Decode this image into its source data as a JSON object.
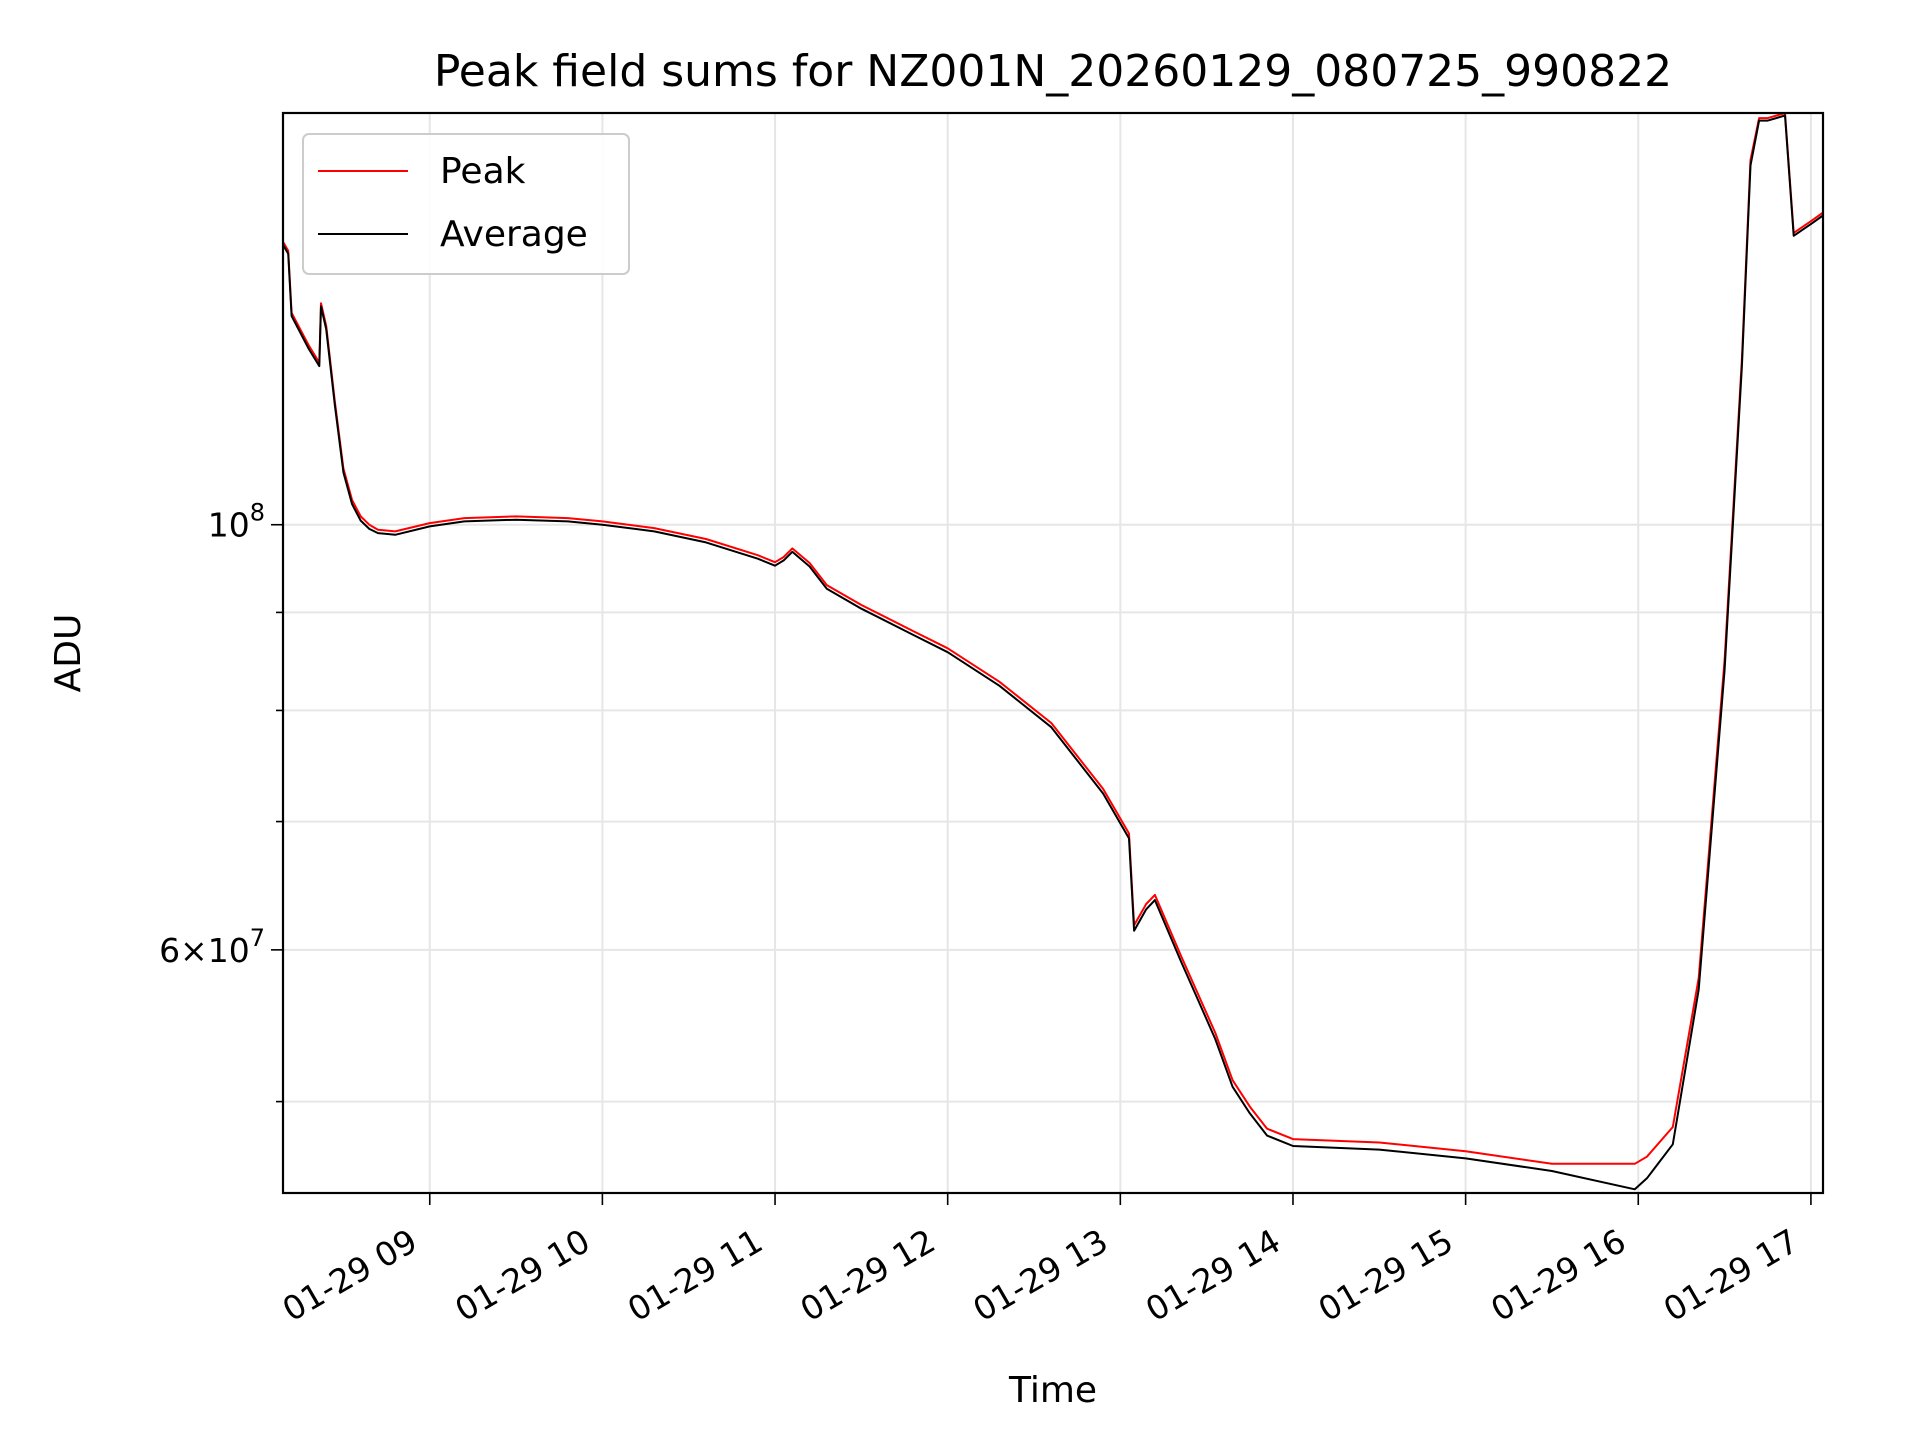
{
  "chart_data": {
    "type": "line",
    "title": "Peak field sums for NZ001N_20260129_080725_990822",
    "xlabel": "Time",
    "ylabel": "ADU",
    "yscale": "log",
    "ylim": [
      44800000,
      164000000
    ],
    "xlim_hours": [
      8.15,
      17.07
    ],
    "x_ticks": [
      {
        "hour": 9,
        "label": "01-29 09"
      },
      {
        "hour": 10,
        "label": "01-29 10"
      },
      {
        "hour": 11,
        "label": "01-29 11"
      },
      {
        "hour": 12,
        "label": "01-29 12"
      },
      {
        "hour": 13,
        "label": "01-29 13"
      },
      {
        "hour": 14,
        "label": "01-29 14"
      },
      {
        "hour": 15,
        "label": "01-29 15"
      },
      {
        "hour": 16,
        "label": "01-29 16"
      },
      {
        "hour": 17,
        "label": "01-29 17"
      }
    ],
    "y_major_ticks": [
      {
        "value": 100000000,
        "base": "10",
        "exp": "8",
        "coef": ""
      },
      {
        "value": 60000000,
        "base": "10",
        "exp": "7",
        "coef": "6"
      }
    ],
    "y_minor_ticks": [
      50000000,
      70000000,
      80000000,
      90000000
    ],
    "legend": {
      "location": "upper-left",
      "entries": [
        "Peak",
        "Average"
      ]
    },
    "series": [
      {
        "name": "Peak",
        "color": "#ff0000",
        "x": [
          8.15,
          8.18,
          8.2,
          8.3,
          8.36,
          8.37,
          8.4,
          8.45,
          8.5,
          8.55,
          8.6,
          8.65,
          8.7,
          8.8,
          9.0,
          9.2,
          9.5,
          9.8,
          10.0,
          10.3,
          10.6,
          10.9,
          11.0,
          11.05,
          11.1,
          11.2,
          11.3,
          11.5,
          11.8,
          12.0,
          12.3,
          12.6,
          12.9,
          13.05,
          13.08,
          13.15,
          13.2,
          13.35,
          13.45,
          13.55,
          13.65,
          13.75,
          13.85,
          14.0,
          14.5,
          15.0,
          15.5,
          15.98,
          16.05,
          16.2,
          16.35,
          16.5,
          16.6,
          16.65,
          16.7,
          16.75,
          16.85,
          16.9,
          17.0,
          17.07
        ],
        "y": [
          140500000,
          139000000,
          129000000,
          124000000,
          121500000,
          130500000,
          127000000,
          116000000,
          107000000,
          103000000,
          101000000,
          100000000,
          99400000,
          99200000,
          100200000,
          100800000,
          101000000,
          100800000,
          100400000,
          99600000,
          98300000,
          96400000,
          95600000,
          96200000,
          97200000,
          95500000,
          93000000,
          90800000,
          88000000,
          86200000,
          82800000,
          78800000,
          72800000,
          69000000,
          61800000,
          63400000,
          64100000,
          59600000,
          56900000,
          54300000,
          51300000,
          49700000,
          48400000,
          47800000,
          47600000,
          47100000,
          46400000,
          46400000,
          46800000,
          48500000,
          58000000,
          85000000,
          122000000,
          155000000,
          163000000,
          163000000,
          164000000,
          142000000,
          144000000,
          145500000
        ]
      },
      {
        "name": "Average",
        "color": "#000000",
        "x": [
          8.15,
          8.18,
          8.2,
          8.3,
          8.36,
          8.37,
          8.4,
          8.45,
          8.5,
          8.55,
          8.6,
          8.65,
          8.7,
          8.8,
          9.0,
          9.2,
          9.5,
          9.8,
          10.0,
          10.3,
          10.6,
          10.9,
          11.0,
          11.05,
          11.1,
          11.2,
          11.3,
          11.5,
          11.8,
          12.0,
          12.3,
          12.6,
          12.9,
          13.05,
          13.08,
          13.15,
          13.2,
          13.35,
          13.45,
          13.55,
          13.65,
          13.75,
          13.85,
          14.0,
          14.5,
          15.0,
          15.5,
          15.98,
          16.05,
          16.2,
          16.35,
          16.5,
          16.6,
          16.65,
          16.7,
          16.75,
          16.85,
          16.9,
          17.0,
          17.07
        ],
        "y": [
          140000000,
          138500000,
          128500000,
          123500000,
          121000000,
          130000000,
          126500000,
          115500000,
          106500000,
          102500000,
          100500000,
          99500000,
          99000000,
          98800000,
          99800000,
          100400000,
          100600000,
          100400000,
          100000000,
          99200000,
          97900000,
          96000000,
          95200000,
          95800000,
          96800000,
          95100000,
          92600000,
          90400000,
          87600000,
          85800000,
          82400000,
          78400000,
          72400000,
          68600000,
          61400000,
          63000000,
          63700000,
          59200000,
          56500000,
          53900000,
          50900000,
          49300000,
          48000000,
          47400000,
          47200000,
          46700000,
          46000000,
          45000000,
          45600000,
          47500000,
          57200000,
          84000000,
          121000000,
          154000000,
          162500000,
          162500000,
          163500000,
          141500000,
          143500000,
          145000000
        ]
      }
    ]
  }
}
